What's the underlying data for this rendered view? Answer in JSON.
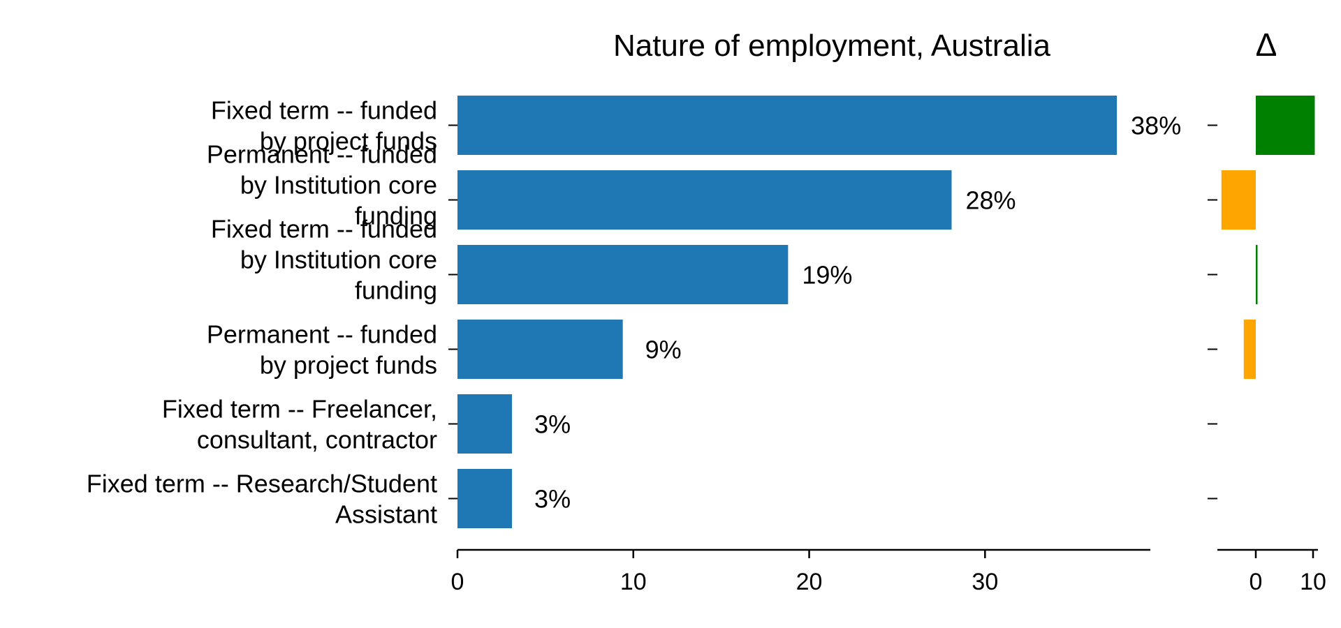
{
  "chart_data": [
    {
      "type": "bar",
      "orientation": "horizontal",
      "title": "Nature of employment, Australia",
      "xlabel": "",
      "ylabel": "",
      "categories": [
        [
          "Fixed term -- funded",
          "by project funds"
        ],
        [
          "Permanent -- funded",
          "by Institution core",
          "funding"
        ],
        [
          "Fixed term -- funded",
          "by Institution core",
          "funding"
        ],
        [
          "Permanent -- funded",
          "by project funds"
        ],
        [
          "Fixed term -- Freelancer,",
          "consultant, contractor"
        ],
        [
          "Fixed term -- Research/Student",
          "Assistant"
        ]
      ],
      "values": [
        37.5,
        28.1,
        18.8,
        9.4,
        3.1,
        3.1
      ],
      "value_labels": [
        "38%",
        "28%",
        "19%",
        "9%",
        "3%",
        "3%"
      ],
      "xlim": [
        0,
        39.4
      ],
      "xticks": [
        0,
        10,
        20,
        30
      ],
      "xtick_labels": [
        "0",
        "10",
        "20",
        "30"
      ],
      "bar_color": "#1f77b4",
      "grid": false
    },
    {
      "type": "bar",
      "orientation": "horizontal",
      "title": "Δ",
      "values": [
        10.3,
        -6.0,
        0.3,
        -2.1,
        0,
        0
      ],
      "xlim": [
        -7,
        11
      ],
      "xticks": [
        0,
        10
      ],
      "xtick_labels": [
        "0",
        "10"
      ],
      "positive_color": "#008000",
      "negative_color": "#ffa500",
      "grid": false
    }
  ]
}
